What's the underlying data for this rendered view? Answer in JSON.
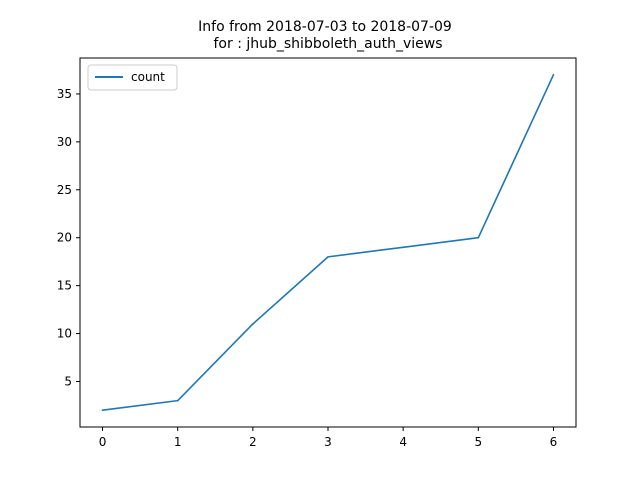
{
  "chart_data": {
    "type": "line",
    "title": "Info from 2018-07-03 to 2018-07-09\n for  : jhub_shibboleth_auth_views",
    "title_lines": [
      "Info from 2018-07-03 to 2018-07-09",
      "for  : jhub_shibboleth_auth_views"
    ],
    "xlabel": "",
    "ylabel": "",
    "x": [
      0,
      1,
      2,
      3,
      4,
      5,
      6
    ],
    "x_ticks": [
      0,
      1,
      2,
      3,
      4,
      5,
      6
    ],
    "y_ticks": [
      5,
      10,
      15,
      20,
      25,
      30,
      35
    ],
    "xlim": [
      -0.3,
      6.3
    ],
    "ylim": [
      0.25,
      38.75
    ],
    "series": [
      {
        "name": "count",
        "values": [
          2,
          3,
          11,
          18,
          19,
          20,
          37
        ],
        "color": "#1f77b4"
      }
    ],
    "legend": {
      "placement": "top-left",
      "entries": [
        "count"
      ]
    },
    "grid": false
  }
}
